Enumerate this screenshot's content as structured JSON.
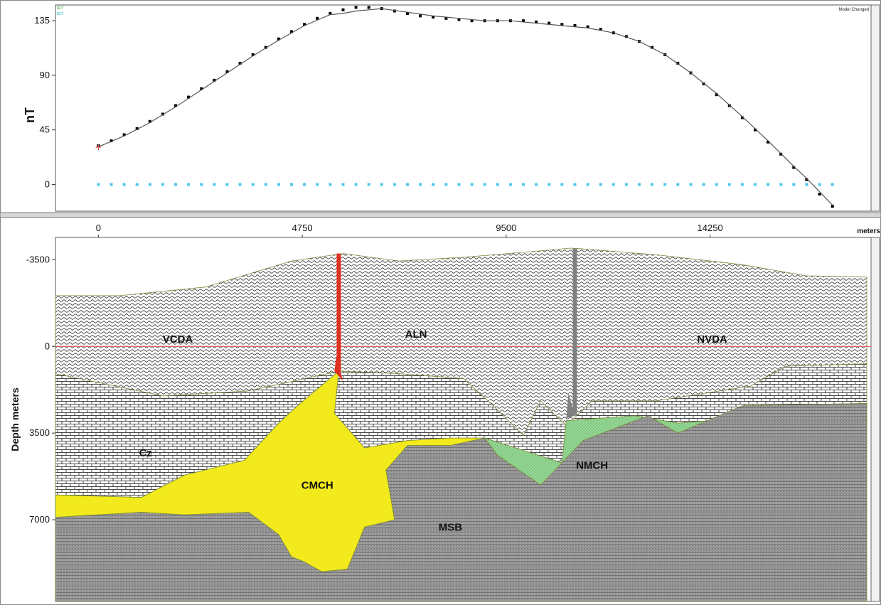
{
  "window": {
    "status_text": "Model Changed",
    "legend_items": [
      {
        "label": "ltz?",
        "color": "#2ca02c"
      },
      {
        "label": "ltz?",
        "color": "#17becf"
      }
    ]
  },
  "chart_data": [
    {
      "type": "line",
      "title": "",
      "xlabel": "",
      "ylabel": "nT",
      "xlim": [
        -1000,
        18000
      ],
      "ylim": [
        -22,
        148
      ],
      "yticks": [
        0,
        45,
        90,
        135
      ],
      "grid": false,
      "series": [
        {
          "name": "",
          "style": "points",
          "color": "#000000",
          "x": [
            0,
            300,
            600,
            900,
            1200,
            1500,
            1800,
            2100,
            2400,
            2700,
            3000,
            3300,
            3600,
            3900,
            4200,
            4500,
            4800,
            5100,
            5400,
            5700,
            6000,
            6300,
            6600,
            6900,
            7200,
            7500,
            7800,
            8100,
            8400,
            8700,
            9000,
            9300,
            9600,
            9900,
            10200,
            10500,
            10800,
            11100,
            11400,
            11700,
            12000,
            12300,
            12600,
            12900,
            13200,
            13500,
            13800,
            14100,
            14400,
            14700,
            15000,
            15300,
            15600,
            15900,
            16200,
            16500,
            16800,
            17100
          ],
          "y": [
            32,
            36,
            41,
            46,
            52,
            58,
            65,
            72,
            79,
            86,
            93,
            100,
            107,
            113,
            120,
            126,
            132,
            137,
            141,
            144,
            146,
            146,
            145,
            143,
            141,
            139,
            138,
            137,
            136,
            135,
            135,
            135,
            135,
            135,
            134,
            133,
            132,
            131,
            130,
            128,
            125,
            122,
            118,
            113,
            107,
            100,
            92,
            83,
            74,
            65,
            55,
            45,
            35,
            25,
            14,
            4,
            -8,
            -18
          ]
        },
        {
          "name": "",
          "style": "line",
          "color": "#555555",
          "x": [
            0,
            600,
            1200,
            1800,
            2400,
            3000,
            3600,
            4200,
            4800,
            5400,
            5700,
            6000,
            6600,
            7200,
            7800,
            8400,
            9000,
            9600,
            10200,
            10800,
            11400,
            12000,
            12600,
            13200,
            13800,
            14400,
            15000,
            15600,
            16200,
            16500,
            16800,
            17100
          ],
          "y": [
            31,
            40,
            51,
            64,
            78,
            92,
            106,
            119,
            131,
            140,
            141,
            143,
            145,
            142,
            139,
            137,
            135,
            135,
            133,
            131,
            129,
            125,
            118,
            107,
            92,
            75,
            56,
            36,
            15,
            5,
            -6,
            -17
          ]
        },
        {
          "name": "",
          "style": "points",
          "color": "#4ec8e8",
          "x": [
            0,
            300,
            600,
            900,
            1200,
            1500,
            1800,
            2100,
            2400,
            2700,
            3000,
            3300,
            3600,
            3900,
            4200,
            4500,
            4800,
            5100,
            5400,
            5700,
            6000,
            6300,
            6600,
            6900,
            7200,
            7500,
            7800,
            8100,
            8400,
            8700,
            9000,
            9300,
            9600,
            9900,
            10200,
            10500,
            10800,
            11100,
            11400,
            11700,
            12000,
            12300,
            12600,
            12900,
            13200,
            13500,
            13800,
            14100,
            14400,
            14700,
            15000,
            15300,
            15600,
            15900,
            16200,
            16500,
            16800,
            17100
          ],
          "y": [
            0,
            0,
            0,
            0,
            0,
            0,
            0,
            0,
            0,
            0,
            0,
            0,
            0,
            0,
            0,
            0,
            0,
            0,
            0,
            0,
            0,
            0,
            0,
            0,
            0,
            0,
            0,
            0,
            0,
            0,
            0,
            0,
            0,
            0,
            0,
            0,
            0,
            0,
            0,
            0,
            0,
            0,
            0,
            0,
            0,
            0,
            0,
            0,
            0,
            0,
            0,
            0,
            0,
            0,
            0,
            0,
            0,
            0
          ]
        }
      ],
      "markers": [
        {
          "x": 0,
          "y": 31,
          "symbol": "+",
          "color": "#e05050"
        }
      ]
    },
    {
      "type": "area",
      "title": "",
      "xlabel": "meters",
      "ylabel": "Depth meters",
      "xlim": [
        -1000,
        18000
      ],
      "ylim": [
        -4400,
        10300
      ],
      "xticks": [
        0,
        4750,
        9500,
        14250
      ],
      "yticks": [
        -3500,
        0,
        3500,
        7000
      ],
      "y_inverted": true,
      "grid": false,
      "reference_line": {
        "y": 0,
        "color": "#e06060"
      },
      "units": [
        {
          "label": "VCDA",
          "pattern": "wavy",
          "color": "#ffffff",
          "label_at": [
            1850,
            -300
          ],
          "polygon": [
            [
              -1000,
              -2050
            ],
            [
              500,
              -2050
            ],
            [
              2500,
              -2400
            ],
            [
              4500,
              -3450
            ],
            [
              5700,
              -3750
            ],
            [
              7000,
              -3450
            ],
            [
              8500,
              -3600
            ],
            [
              9900,
              -3800
            ],
            [
              11000,
              -3970
            ],
            [
              11200,
              -3950
            ],
            [
              13000,
              -3700
            ],
            [
              15000,
              -3300
            ],
            [
              16500,
              -2850
            ],
            [
              17900,
              -2800
            ],
            [
              17900,
              700
            ],
            [
              16000,
              800
            ],
            [
              15200,
              1600
            ],
            [
              13000,
              2200
            ],
            [
              11500,
              2200
            ],
            [
              10900,
              3200
            ],
            [
              10300,
              2200
            ],
            [
              9900,
              3600
            ],
            [
              9200,
              2400
            ],
            [
              8500,
              1300
            ],
            [
              7000,
              1100
            ],
            [
              5600,
              1000
            ],
            [
              3500,
              1800
            ],
            [
              1500,
              2000
            ],
            [
              -1000,
              1100
            ]
          ]
        },
        {
          "label": "Cz",
          "pattern": "brick",
          "color": "#ffffff",
          "label_at": [
            1100,
            4300
          ],
          "polygon": [
            [
              -1000,
              1100
            ],
            [
              1500,
              2000
            ],
            [
              3500,
              1800
            ],
            [
              5600,
              1000
            ],
            [
              7000,
              1100
            ],
            [
              8500,
              1300
            ],
            [
              9200,
              2400
            ],
            [
              9900,
              3600
            ],
            [
              10300,
              2200
            ],
            [
              10900,
              3200
            ],
            [
              11500,
              2200
            ],
            [
              13000,
              2200
            ],
            [
              15200,
              1600
            ],
            [
              16000,
              800
            ],
            [
              17900,
              700
            ],
            [
              17900,
              3300
            ],
            [
              15000,
              2900
            ],
            [
              13500,
              3100
            ],
            [
              12500,
              2800
            ],
            [
              10900,
              3000
            ],
            [
              10800,
              4700
            ],
            [
              9000,
              3700
            ],
            [
              7200,
              3800
            ],
            [
              6200,
              4100
            ],
            [
              5500,
              2700
            ],
            [
              5600,
              1000
            ],
            [
              4700,
              2300
            ],
            [
              4200,
              3100
            ],
            [
              3400,
              4600
            ],
            [
              2000,
              5200
            ],
            [
              1000,
              6100
            ],
            [
              -1000,
              6000
            ]
          ]
        },
        {
          "label": "CMCH",
          "pattern": "solid",
          "color": "#f2ea1c",
          "label_at": [
            5100,
            5600
          ],
          "polygon": [
            [
              5600,
              1000
            ],
            [
              5500,
              2700
            ],
            [
              6200,
              4100
            ],
            [
              7200,
              3800
            ],
            [
              8200,
              3700
            ],
            [
              9000,
              3700
            ],
            [
              8200,
              4000
            ],
            [
              7200,
              4000
            ],
            [
              6700,
              5000
            ],
            [
              6900,
              7000
            ],
            [
              6200,
              7300
            ],
            [
              5800,
              9000
            ],
            [
              5200,
              9100
            ],
            [
              4800,
              8700
            ],
            [
              4500,
              8500
            ],
            [
              4200,
              7600
            ],
            [
              3500,
              6700
            ],
            [
              2000,
              6800
            ],
            [
              1000,
              6700
            ],
            [
              -1000,
              6900
            ],
            [
              -1000,
              6000
            ],
            [
              1000,
              6100
            ],
            [
              2000,
              5200
            ],
            [
              3400,
              4600
            ],
            [
              4200,
              3100
            ],
            [
              4700,
              2300
            ]
          ]
        },
        {
          "label": "NMCH",
          "pattern": "dotted",
          "color": "#8fd68f",
          "label_at": [
            11500,
            4800
          ],
          "polygon": [
            [
              9000,
              3700
            ],
            [
              10800,
              4700
            ],
            [
              10900,
              3000
            ],
            [
              12500,
              2800
            ],
            [
              13500,
              3100
            ],
            [
              15000,
              2900
            ],
            [
              17900,
              3300
            ],
            [
              17900,
              2300
            ],
            [
              15000,
              2400
            ],
            [
              13500,
              3500
            ],
            [
              12800,
              2800
            ],
            [
              11300,
              3800
            ],
            [
              10300,
              5600
            ],
            [
              9300,
              4400
            ]
          ]
        },
        {
          "label": "MSB",
          "pattern": "fine",
          "color": "#9a9a9a",
          "label_at": [
            8200,
            7300
          ],
          "polygon": [
            [
              -1000,
              6900
            ],
            [
              1000,
              6700
            ],
            [
              2000,
              6800
            ],
            [
              3500,
              6700
            ],
            [
              4200,
              7600
            ],
            [
              4500,
              8500
            ],
            [
              4800,
              8700
            ],
            [
              5200,
              9100
            ],
            [
              5800,
              9000
            ],
            [
              6200,
              7300
            ],
            [
              6900,
              7000
            ],
            [
              6700,
              5000
            ],
            [
              7200,
              4000
            ],
            [
              8200,
              4000
            ],
            [
              9000,
              3700
            ],
            [
              9300,
              4400
            ],
            [
              10300,
              5600
            ],
            [
              11300,
              3800
            ],
            [
              12800,
              2800
            ],
            [
              13500,
              3500
            ],
            [
              15000,
              2400
            ],
            [
              17900,
              2300
            ],
            [
              17900,
              10300
            ],
            [
              -1000,
              10300
            ]
          ]
        },
        {
          "label": "ALN",
          "pattern": "none",
          "color": "#ffffff",
          "label_at": [
            7400,
            -500
          ],
          "polygon": []
        },
        {
          "label": "NVDA",
          "pattern": "none",
          "color": "#ffffff",
          "label_at": [
            14300,
            -300
          ],
          "polygon": []
        }
      ],
      "faults": [
        {
          "color": "#e03020",
          "points": [
            [
              5600,
              -3750
            ],
            [
              5600,
              1000
            ]
          ],
          "wedge": [
            [
              5540,
              400
            ],
            [
              5700,
              1400
            ],
            [
              5500,
              1000
            ]
          ]
        },
        {
          "color": "#808080",
          "points": [
            [
              11100,
              -3950
            ],
            [
              11100,
              2800
            ]
          ],
          "wedge": [
            [
              10950,
              1900
            ],
            [
              11100,
              2800
            ],
            [
              10900,
              2900
            ]
          ]
        }
      ]
    }
  ]
}
